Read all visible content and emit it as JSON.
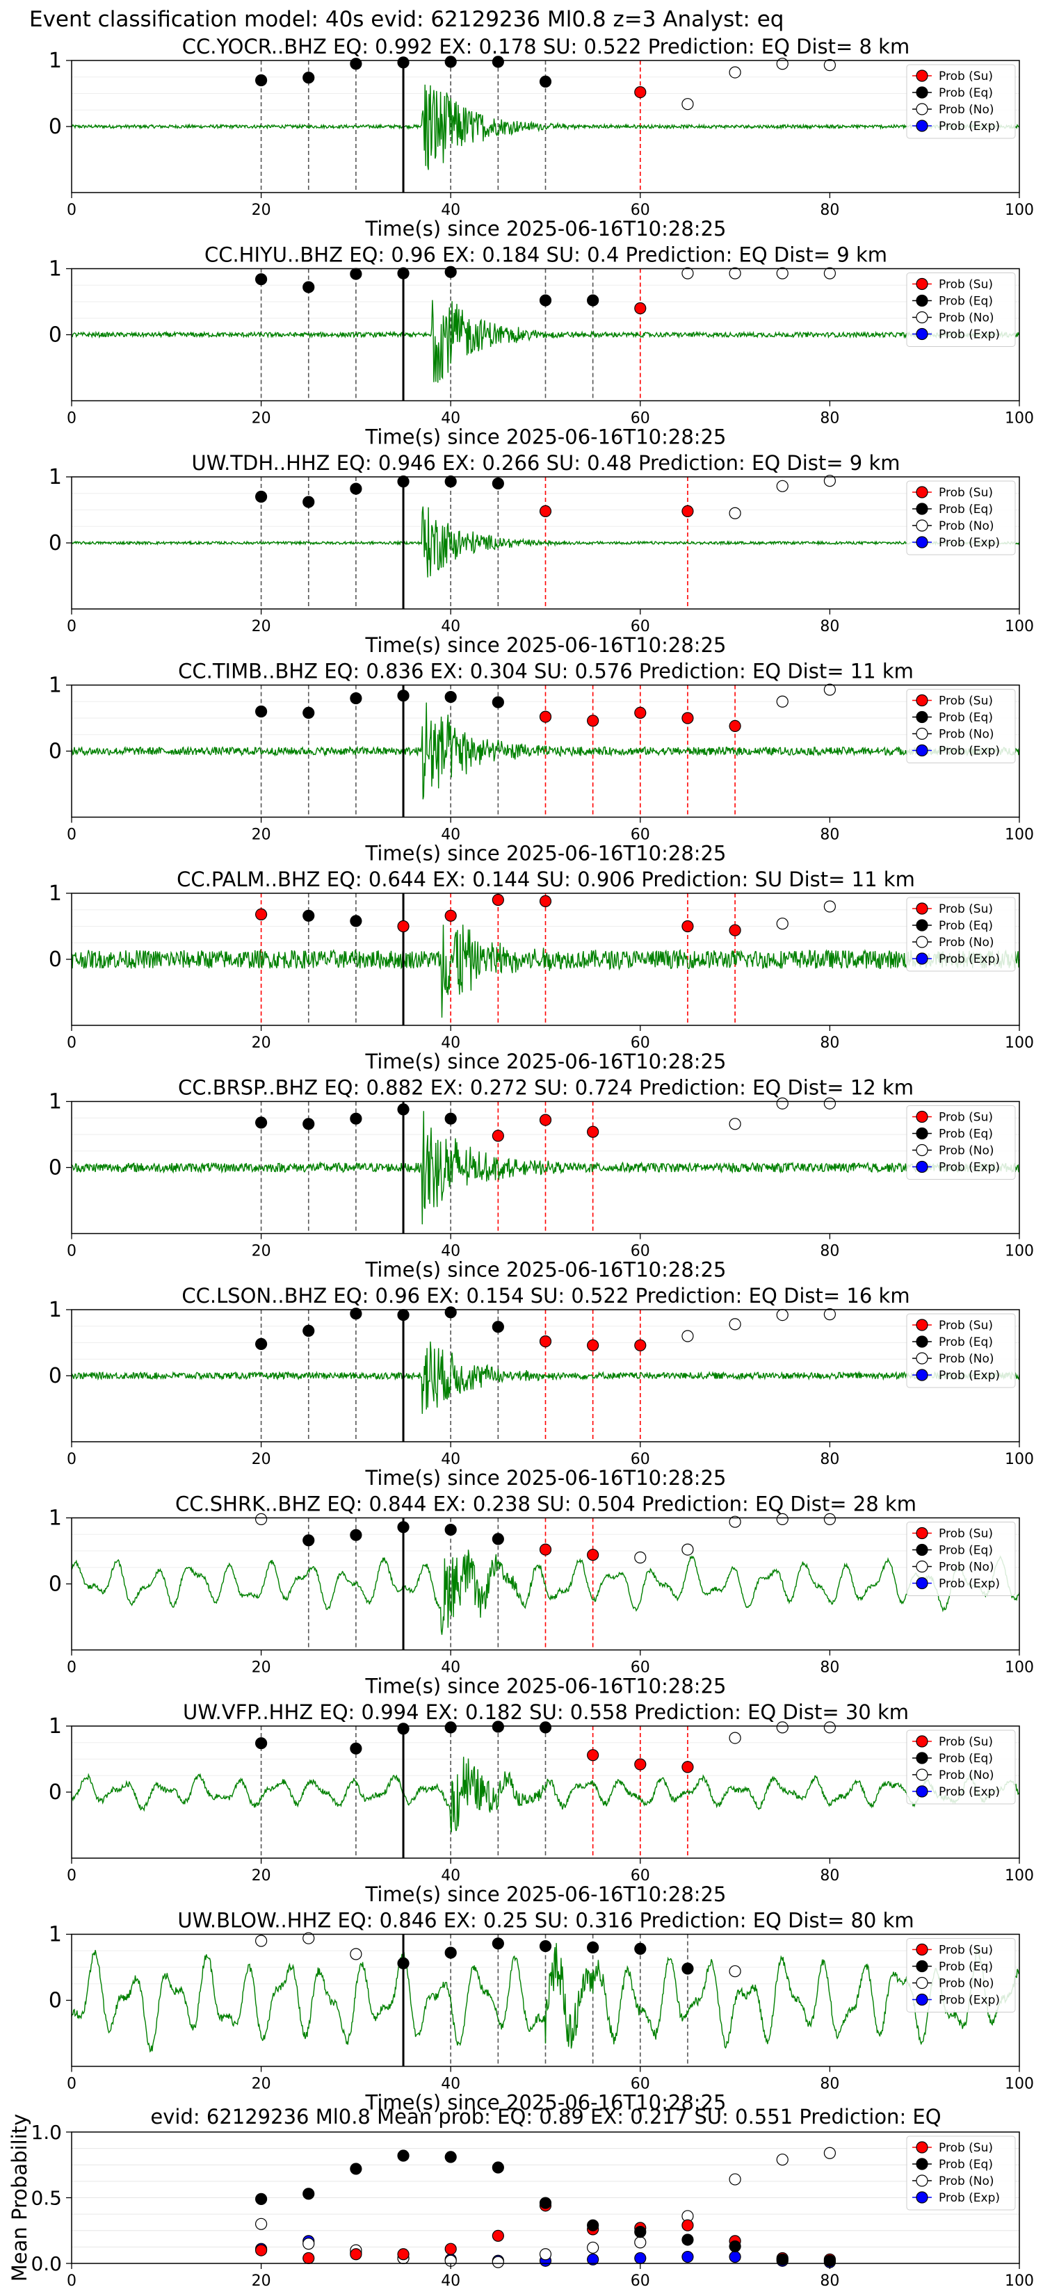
{
  "figure": {
    "suptitle": "Event classification model: 40s evid: 62129236 Ml0.8 z=3 Analyst: eq"
  },
  "legend": {
    "su": "Prob (Su)",
    "eq": "Prob (Eq)",
    "no": "Prob (No)",
    "exp": "Prob (Exp)"
  },
  "colors": {
    "waveform": "#008000",
    "su": "#ff0000",
    "eq": "#000000",
    "no": "#ffffff",
    "exp": "#0000ff",
    "vline_eq": "#555555",
    "vline_su": "#ff0000",
    "origin": "#000000"
  },
  "chart_data": [
    {
      "type": "scatter",
      "title": "CC.YOCR..BHZ   EQ: 0.992  EX: 0.178  SU: 0.522   Prediction: EQ    Dist= 8 km",
      "xlabel": "Time(s) since 2025-06-16T10:28:25",
      "xlim": [
        0,
        100
      ],
      "ylim": [
        -1,
        1
      ],
      "xticks": [
        0,
        20,
        40,
        60,
        80,
        100
      ],
      "yticks": [
        1,
        0
      ],
      "origin_time": 35,
      "waveform_noise": 0.025,
      "waveform_burst": 1.0,
      "waveform_long_period": 0.0,
      "burst_start": 37,
      "points": [
        {
          "x": 20,
          "eq": 0.7
        },
        {
          "x": 25,
          "eq": 0.74
        },
        {
          "x": 30,
          "eq": 0.95
        },
        {
          "x": 35,
          "eq": 0.97
        },
        {
          "x": 40,
          "eq": 0.98
        },
        {
          "x": 45,
          "eq": 0.98
        },
        {
          "x": 50,
          "eq": 0.68
        },
        {
          "x": 60,
          "su": 0.52
        },
        {
          "x": 65,
          "no": 0.34
        },
        {
          "x": 70,
          "no": 0.82
        },
        {
          "x": 75,
          "no": 0.95
        },
        {
          "x": 80,
          "no": 0.93
        }
      ]
    },
    {
      "type": "scatter",
      "title": "CC.HIYU..BHZ   EQ: 0.96  EX: 0.184  SU: 0.4   Prediction: EQ    Dist= 9 km",
      "xlabel": "Time(s) since 2025-06-16T10:28:25",
      "xlim": [
        0,
        100
      ],
      "ylim": [
        -1,
        1
      ],
      "xticks": [
        0,
        20,
        40,
        60,
        80,
        100
      ],
      "yticks": [
        1,
        0
      ],
      "origin_time": 35,
      "waveform_noise": 0.035,
      "waveform_burst": 0.9,
      "waveform_long_period": 0.0,
      "burst_start": 38,
      "points": [
        {
          "x": 20,
          "eq": 0.84
        },
        {
          "x": 25,
          "eq": 0.72
        },
        {
          "x": 30,
          "eq": 0.92
        },
        {
          "x": 35,
          "eq": 0.93
        },
        {
          "x": 40,
          "eq": 0.95
        },
        {
          "x": 50,
          "eq": 0.52
        },
        {
          "x": 55,
          "eq": 0.52
        },
        {
          "x": 60,
          "su": 0.4
        },
        {
          "x": 65,
          "no": 0.93
        },
        {
          "x": 70,
          "no": 0.93
        },
        {
          "x": 75,
          "no": 0.93
        },
        {
          "x": 80,
          "no": 0.93
        }
      ]
    },
    {
      "type": "scatter",
      "title": "UW.TDH..HHZ   EQ: 0.946  EX: 0.266  SU: 0.48   Prediction: EQ    Dist= 9 km",
      "xlabel": "Time(s) since 2025-06-16T10:28:25",
      "xlim": [
        0,
        100
      ],
      "ylim": [
        -1,
        1
      ],
      "xticks": [
        0,
        20,
        40,
        60,
        80,
        100
      ],
      "yticks": [
        1,
        0
      ],
      "origin_time": 35,
      "waveform_noise": 0.02,
      "waveform_burst": 0.65,
      "waveform_long_period": 0.0,
      "burst_start": 37,
      "points": [
        {
          "x": 20,
          "eq": 0.7
        },
        {
          "x": 25,
          "eq": 0.62
        },
        {
          "x": 30,
          "eq": 0.82
        },
        {
          "x": 35,
          "eq": 0.93
        },
        {
          "x": 40,
          "eq": 0.93
        },
        {
          "x": 45,
          "eq": 0.9
        },
        {
          "x": 50,
          "su": 0.48
        },
        {
          "x": 65,
          "su": 0.48
        },
        {
          "x": 70,
          "no": 0.45
        },
        {
          "x": 75,
          "no": 0.86
        },
        {
          "x": 80,
          "no": 0.94
        }
      ]
    },
    {
      "type": "scatter",
      "title": "CC.TIMB..BHZ   EQ: 0.836  EX: 0.304  SU: 0.576   Prediction: EQ    Dist= 11 km",
      "xlabel": "Time(s) since 2025-06-16T10:28:25",
      "xlim": [
        0,
        100
      ],
      "ylim": [
        -1,
        1
      ],
      "xticks": [
        0,
        20,
        40,
        60,
        80,
        100
      ],
      "yticks": [
        1,
        0
      ],
      "origin_time": 35,
      "waveform_noise": 0.06,
      "waveform_burst": 1.0,
      "waveform_long_period": 0.0,
      "burst_start": 37,
      "points": [
        {
          "x": 20,
          "eq": 0.6
        },
        {
          "x": 25,
          "eq": 0.58
        },
        {
          "x": 30,
          "eq": 0.8
        },
        {
          "x": 35,
          "eq": 0.84
        },
        {
          "x": 40,
          "eq": 0.82
        },
        {
          "x": 45,
          "eq": 0.74
        },
        {
          "x": 50,
          "su": 0.52
        },
        {
          "x": 55,
          "su": 0.46
        },
        {
          "x": 60,
          "su": 0.58
        },
        {
          "x": 65,
          "su": 0.5
        },
        {
          "x": 70,
          "su": 0.38
        },
        {
          "x": 75,
          "no": 0.75
        },
        {
          "x": 80,
          "no": 0.93
        }
      ]
    },
    {
      "type": "scatter",
      "title": "CC.PALM..BHZ   EQ: 0.644  EX: 0.144  SU: 0.906   Prediction: SU    Dist= 11 km",
      "xlabel": "Time(s) since 2025-06-16T10:28:25",
      "xlim": [
        0,
        100
      ],
      "ylim": [
        -1,
        1
      ],
      "xticks": [
        0,
        20,
        40,
        60,
        80,
        100
      ],
      "yticks": [
        1,
        0
      ],
      "origin_time": 35,
      "waveform_noise": 0.14,
      "waveform_burst": 0.85,
      "waveform_long_period": 0.0,
      "burst_start": 39,
      "points": [
        {
          "x": 20,
          "su": 0.68
        },
        {
          "x": 25,
          "eq": 0.66
        },
        {
          "x": 30,
          "eq": 0.58
        },
        {
          "x": 35,
          "su": 0.5
        },
        {
          "x": 40,
          "su": 0.66
        },
        {
          "x": 45,
          "su": 0.9
        },
        {
          "x": 50,
          "su": 0.88
        },
        {
          "x": 65,
          "su": 0.5
        },
        {
          "x": 70,
          "su": 0.44
        },
        {
          "x": 75,
          "no": 0.54
        },
        {
          "x": 80,
          "no": 0.8
        }
      ]
    },
    {
      "type": "scatter",
      "title": "CC.BRSP..BHZ   EQ: 0.882  EX: 0.272  SU: 0.724   Prediction: EQ    Dist= 12 km",
      "xlabel": "Time(s) since 2025-06-16T10:28:25",
      "xlim": [
        0,
        100
      ],
      "ylim": [
        -1,
        1
      ],
      "xticks": [
        0,
        20,
        40,
        60,
        80,
        100
      ],
      "yticks": [
        1,
        0
      ],
      "origin_time": 35,
      "waveform_noise": 0.07,
      "waveform_burst": 1.0,
      "waveform_long_period": 0.0,
      "burst_start": 37,
      "points": [
        {
          "x": 20,
          "eq": 0.68
        },
        {
          "x": 25,
          "eq": 0.66
        },
        {
          "x": 30,
          "eq": 0.74
        },
        {
          "x": 35,
          "eq": 0.88
        },
        {
          "x": 40,
          "eq": 0.74
        },
        {
          "x": 45,
          "su": 0.48
        },
        {
          "x": 50,
          "su": 0.72
        },
        {
          "x": 55,
          "su": 0.54
        },
        {
          "x": 70,
          "no": 0.66
        },
        {
          "x": 75,
          "no": 0.97
        },
        {
          "x": 80,
          "no": 0.97
        }
      ]
    },
    {
      "type": "scatter",
      "title": "CC.LSON..BHZ   EQ: 0.96  EX: 0.154  SU: 0.522   Prediction: EQ    Dist= 16 km",
      "xlabel": "Time(s) since 2025-06-16T10:28:25",
      "xlim": [
        0,
        100
      ],
      "ylim": [
        -1,
        1
      ],
      "xticks": [
        0,
        20,
        40,
        60,
        80,
        100
      ],
      "yticks": [
        1,
        0
      ],
      "origin_time": 35,
      "waveform_noise": 0.05,
      "waveform_burst": 0.75,
      "waveform_long_period": 0.0,
      "burst_start": 37,
      "points": [
        {
          "x": 20,
          "eq": 0.48
        },
        {
          "x": 25,
          "eq": 0.68
        },
        {
          "x": 30,
          "eq": 0.94
        },
        {
          "x": 35,
          "eq": 0.92
        },
        {
          "x": 40,
          "eq": 0.96
        },
        {
          "x": 45,
          "eq": 0.74
        },
        {
          "x": 50,
          "su": 0.52
        },
        {
          "x": 55,
          "su": 0.46
        },
        {
          "x": 60,
          "su": 0.46
        },
        {
          "x": 65,
          "no": 0.6
        },
        {
          "x": 70,
          "no": 0.78
        },
        {
          "x": 75,
          "no": 0.92
        },
        {
          "x": 80,
          "no": 0.93
        }
      ]
    },
    {
      "type": "scatter",
      "title": "CC.SHRK..BHZ   EQ: 0.844  EX: 0.238  SU: 0.504   Prediction: EQ    Dist= 28 km",
      "xlabel": "Time(s) since 2025-06-16T10:28:25",
      "xlim": [
        0,
        100
      ],
      "ylim": [
        -1,
        1
      ],
      "xticks": [
        0,
        20,
        40,
        60,
        80,
        100
      ],
      "yticks": [
        1,
        0
      ],
      "origin_time": 35,
      "waveform_noise": 0.03,
      "waveform_burst": 0.7,
      "waveform_long_period": 0.4,
      "burst_start": 39,
      "points": [
        {
          "x": 20,
          "no": 0.98
        },
        {
          "x": 25,
          "eq": 0.66
        },
        {
          "x": 30,
          "eq": 0.74
        },
        {
          "x": 35,
          "eq": 0.86
        },
        {
          "x": 40,
          "eq": 0.82
        },
        {
          "x": 45,
          "eq": 0.68
        },
        {
          "x": 50,
          "su": 0.52
        },
        {
          "x": 55,
          "su": 0.44
        },
        {
          "x": 60,
          "no": 0.4
        },
        {
          "x": 65,
          "no": 0.52
        },
        {
          "x": 70,
          "no": 0.94
        },
        {
          "x": 75,
          "no": 0.98
        },
        {
          "x": 80,
          "no": 0.98
        }
      ]
    },
    {
      "type": "scatter",
      "title": "UW.VFP..HHZ   EQ: 0.994  EX: 0.182  SU: 0.558   Prediction: EQ    Dist= 30 km",
      "xlabel": "Time(s) since 2025-06-16T10:28:25",
      "xlim": [
        0,
        100
      ],
      "ylim": [
        -1,
        1
      ],
      "xticks": [
        0,
        20,
        40,
        60,
        80,
        100
      ],
      "yticks": [
        1,
        0
      ],
      "origin_time": 35,
      "waveform_noise": 0.04,
      "waveform_burst": 0.65,
      "waveform_long_period": 0.25,
      "burst_start": 40,
      "points": [
        {
          "x": 20,
          "eq": 0.74
        },
        {
          "x": 30,
          "eq": 0.66
        },
        {
          "x": 35,
          "eq": 0.96
        },
        {
          "x": 40,
          "eq": 0.98
        },
        {
          "x": 45,
          "eq": 0.99
        },
        {
          "x": 50,
          "eq": 0.98
        },
        {
          "x": 55,
          "su": 0.56
        },
        {
          "x": 60,
          "su": 0.42
        },
        {
          "x": 65,
          "su": 0.38
        },
        {
          "x": 70,
          "no": 0.82
        },
        {
          "x": 75,
          "no": 0.98
        },
        {
          "x": 80,
          "no": 0.98
        }
      ]
    },
    {
      "type": "scatter",
      "title": "UW.BLOW..HHZ   EQ: 0.846  EX: 0.25  SU: 0.316   Prediction: EQ    Dist= 80 km",
      "xlabel": "Time(s) since 2025-06-16T10:28:25",
      "xlim": [
        0,
        100
      ],
      "ylim": [
        -1,
        1
      ],
      "xticks": [
        0,
        20,
        40,
        60,
        80,
        100
      ],
      "yticks": [
        1,
        0
      ],
      "origin_time": 35,
      "waveform_noise": 0.06,
      "waveform_burst": 0.6,
      "waveform_long_period": 0.75,
      "burst_start": 50,
      "points": [
        {
          "x": 20,
          "no": 0.9
        },
        {
          "x": 25,
          "no": 0.94
        },
        {
          "x": 30,
          "no": 0.7
        },
        {
          "x": 35,
          "eq": 0.56
        },
        {
          "x": 40,
          "eq": 0.72
        },
        {
          "x": 45,
          "eq": 0.86
        },
        {
          "x": 50,
          "eq": 0.82
        },
        {
          "x": 55,
          "eq": 0.8
        },
        {
          "x": 60,
          "eq": 0.78
        },
        {
          "x": 65,
          "eq": 0.48
        },
        {
          "x": 70,
          "no": 0.44
        }
      ]
    },
    {
      "type": "scatter",
      "title": "evid: 62129236  Ml0.8   Mean prob:   EQ: 0.89  EX: 0.217  SU: 0.551   Prediction: EQ",
      "ylabel": "Mean Probability",
      "xlim": [
        0,
        100
      ],
      "ylim": [
        0,
        1
      ],
      "xticks": [
        0,
        20,
        40,
        60,
        80,
        100
      ],
      "yticks": [
        1.0,
        0.5,
        0.0
      ],
      "ytick_labels": [
        "1.0",
        "0.5",
        "0.0"
      ],
      "grid": true,
      "mean_points": [
        {
          "x": 20,
          "eq": 0.49,
          "su": 0.1,
          "no": 0.3,
          "exp": 0.11
        },
        {
          "x": 25,
          "eq": 0.53,
          "su": 0.04,
          "no": 0.15,
          "exp": 0.17
        },
        {
          "x": 30,
          "eq": 0.72,
          "su": 0.07,
          "no": 0.1,
          "exp": 0.08
        },
        {
          "x": 35,
          "eq": 0.82,
          "su": 0.07,
          "no": 0.04,
          "exp": 0.04
        },
        {
          "x": 40,
          "eq": 0.81,
          "su": 0.11,
          "no": 0.02,
          "exp": 0.03
        },
        {
          "x": 45,
          "eq": 0.73,
          "su": 0.21,
          "no": 0.01,
          "exp": 0.02
        },
        {
          "x": 50,
          "eq": 0.46,
          "su": 0.44,
          "no": 0.07,
          "exp": 0.02
        },
        {
          "x": 55,
          "eq": 0.29,
          "su": 0.26,
          "no": 0.12,
          "exp": 0.03
        },
        {
          "x": 60,
          "eq": 0.24,
          "su": 0.27,
          "no": 0.16,
          "exp": 0.04
        },
        {
          "x": 65,
          "eq": 0.18,
          "su": 0.29,
          "no": 0.36,
          "exp": 0.05
        },
        {
          "x": 70,
          "eq": 0.13,
          "su": 0.17,
          "no": 0.64,
          "exp": 0.05
        },
        {
          "x": 75,
          "eq": 0.03,
          "su": 0.04,
          "no": 0.79,
          "exp": 0.02
        },
        {
          "x": 80,
          "eq": 0.02,
          "su": 0.03,
          "no": 0.84,
          "exp": 0.01
        }
      ]
    }
  ]
}
